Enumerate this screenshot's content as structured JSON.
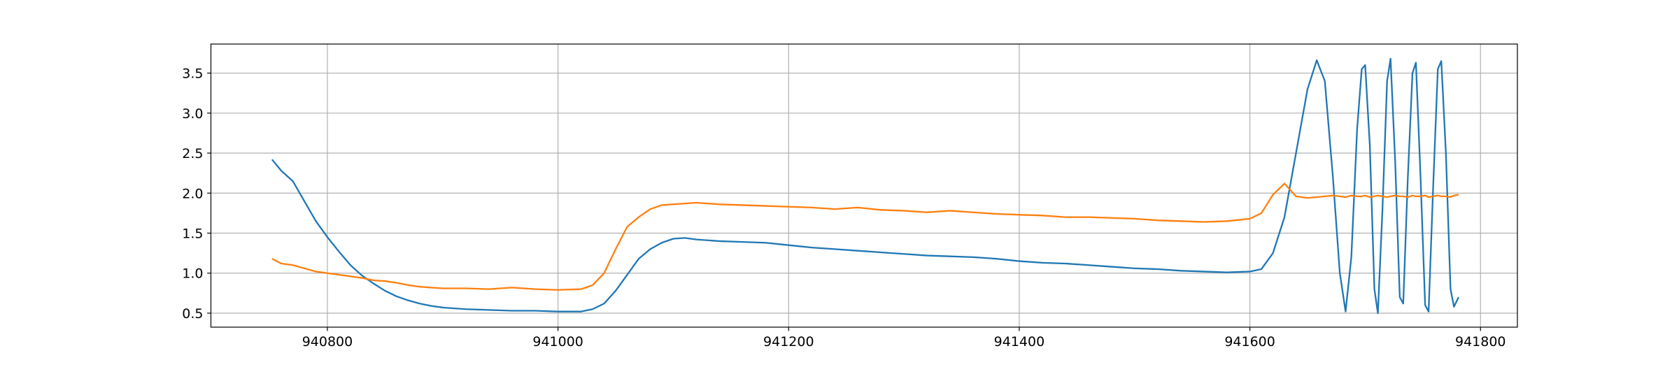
{
  "chart_data": {
    "type": "line",
    "x": [
      940752,
      940760,
      940770,
      940780,
      940790,
      940800,
      940810,
      940820,
      940830,
      940840,
      940850,
      940860,
      940870,
      940880,
      940890,
      940900,
      940920,
      940940,
      940960,
      940980,
      941000,
      941020,
      941030,
      941040,
      941050,
      941060,
      941070,
      941080,
      941090,
      941100,
      941110,
      941120,
      941140,
      941160,
      941180,
      941200,
      941220,
      941240,
      941260,
      941280,
      941300,
      941320,
      941340,
      941360,
      941380,
      941400,
      941420,
      941440,
      941460,
      941480,
      941500,
      941520,
      941540,
      941560,
      941580,
      941600,
      941610,
      941620,
      941630,
      941640,
      941650,
      941658,
      941665,
      941672,
      941678,
      941683,
      941688,
      941693,
      941697,
      941700,
      941704,
      941708,
      941711,
      941715,
      941719,
      941722,
      941726,
      941730,
      941733,
      941737,
      941741,
      941744,
      941748,
      941752,
      941755,
      941759,
      941763,
      941766,
      941770,
      941774,
      941777,
      941781
    ],
    "series": [
      {
        "color": "#1f77b4",
        "values": [
          2.42,
          2.28,
          2.15,
          1.9,
          1.65,
          1.45,
          1.27,
          1.1,
          0.97,
          0.87,
          0.78,
          0.71,
          0.66,
          0.62,
          0.59,
          0.57,
          0.55,
          0.54,
          0.53,
          0.53,
          0.52,
          0.52,
          0.55,
          0.62,
          0.78,
          0.98,
          1.18,
          1.3,
          1.38,
          1.43,
          1.44,
          1.42,
          1.4,
          1.39,
          1.38,
          1.35,
          1.32,
          1.3,
          1.28,
          1.26,
          1.24,
          1.22,
          1.21,
          1.2,
          1.18,
          1.15,
          1.13,
          1.12,
          1.1,
          1.08,
          1.06,
          1.05,
          1.03,
          1.02,
          1.01,
          1.02,
          1.05,
          1.25,
          1.7,
          2.5,
          3.3,
          3.66,
          3.4,
          2.2,
          1.0,
          0.52,
          1.2,
          2.8,
          3.55,
          3.6,
          2.6,
          0.8,
          0.5,
          1.8,
          3.4,
          3.68,
          2.4,
          0.7,
          0.62,
          2.2,
          3.5,
          3.63,
          2.2,
          0.6,
          0.52,
          2.1,
          3.55,
          3.65,
          2.5,
          0.8,
          0.58,
          0.7
        ]
      },
      {
        "color": "#ff7f0e",
        "values": [
          1.18,
          1.12,
          1.1,
          1.06,
          1.02,
          1.0,
          0.98,
          0.96,
          0.94,
          0.91,
          0.9,
          0.88,
          0.85,
          0.83,
          0.82,
          0.81,
          0.81,
          0.8,
          0.82,
          0.8,
          0.79,
          0.8,
          0.85,
          1.0,
          1.3,
          1.58,
          1.7,
          1.8,
          1.85,
          1.86,
          1.87,
          1.88,
          1.86,
          1.85,
          1.84,
          1.83,
          1.82,
          1.8,
          1.82,
          1.79,
          1.78,
          1.76,
          1.78,
          1.76,
          1.74,
          1.73,
          1.72,
          1.7,
          1.7,
          1.69,
          1.68,
          1.66,
          1.65,
          1.64,
          1.65,
          1.68,
          1.75,
          1.98,
          2.12,
          1.96,
          1.94,
          1.95,
          1.96,
          1.97,
          1.96,
          1.95,
          1.97,
          1.96,
          1.96,
          1.97,
          1.95,
          1.96,
          1.97,
          1.96,
          1.95,
          1.96,
          1.97,
          1.96,
          1.96,
          1.95,
          1.97,
          1.96,
          1.96,
          1.97,
          1.95,
          1.96,
          1.97,
          1.96,
          1.96,
          1.95,
          1.97,
          1.98
        ]
      }
    ],
    "xlim": [
      940699,
      941832
    ],
    "xticks": [
      940800,
      941000,
      941200,
      941400,
      941600,
      941800
    ],
    "ylim": [
      0.325,
      3.863
    ],
    "yticks": [
      0.5,
      {
        "value": 1,
        "label": "1.0"
      },
      1.5,
      {
        "value": 2,
        "label": "2.0"
      },
      2.5,
      {
        "value": 3,
        "label": "3.0"
      },
      3.5
    ],
    "grid": true
  }
}
